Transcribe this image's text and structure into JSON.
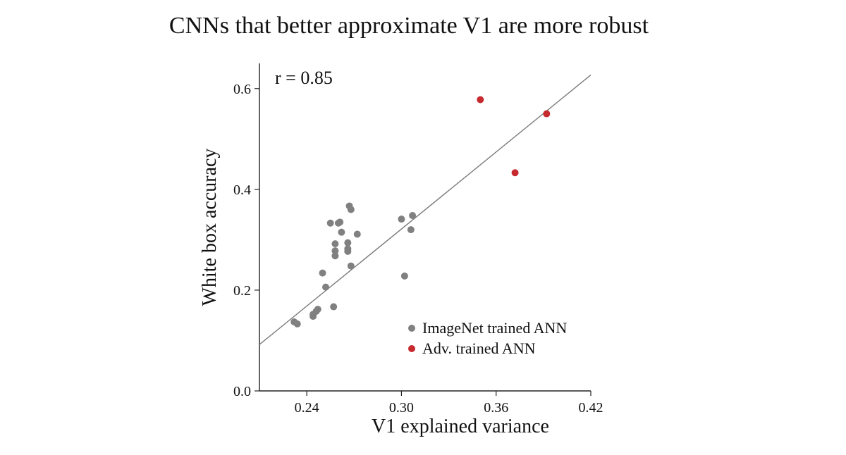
{
  "chart_data": {
    "type": "scatter",
    "title": "CNNs that better approximate V1 are more robust",
    "xlabel": "V1 explained variance",
    "ylabel": "White box accuracy",
    "xlim": [
      0.21,
      0.42
    ],
    "ylim": [
      0.0,
      0.65
    ],
    "xticks": [
      0.24,
      0.3,
      0.36,
      0.42
    ],
    "xtick_labels": [
      "0.24",
      "0.30",
      "0.36",
      "0.42"
    ],
    "yticks": [
      0.0,
      0.2,
      0.4,
      0.6
    ],
    "ytick_labels": [
      "0.0",
      "0.2",
      "0.4",
      "0.6"
    ],
    "annotation": "r = 0.85",
    "fit_line": {
      "x": [
        0.21,
        0.42
      ],
      "y": [
        0.092,
        0.627
      ]
    },
    "legend_position": "bottom-right",
    "series": [
      {
        "name": "ImageNet trained ANN",
        "color": "#808080",
        "points": [
          [
            0.232,
            0.137
          ],
          [
            0.234,
            0.133
          ],
          [
            0.244,
            0.148
          ],
          [
            0.244,
            0.152
          ],
          [
            0.246,
            0.158
          ],
          [
            0.247,
            0.162
          ],
          [
            0.25,
            0.234
          ],
          [
            0.252,
            0.206
          ],
          [
            0.257,
            0.167
          ],
          [
            0.255,
            0.333
          ],
          [
            0.258,
            0.292
          ],
          [
            0.258,
            0.278
          ],
          [
            0.258,
            0.268
          ],
          [
            0.26,
            0.333
          ],
          [
            0.261,
            0.335
          ],
          [
            0.262,
            0.315
          ],
          [
            0.266,
            0.294
          ],
          [
            0.266,
            0.282
          ],
          [
            0.266,
            0.277
          ],
          [
            0.267,
            0.367
          ],
          [
            0.268,
            0.36
          ],
          [
            0.268,
            0.248
          ],
          [
            0.272,
            0.311
          ],
          [
            0.3,
            0.341
          ],
          [
            0.302,
            0.228
          ],
          [
            0.306,
            0.32
          ],
          [
            0.307,
            0.348
          ]
        ]
      },
      {
        "name": "Adv. trained ANN",
        "color": "#c62a2f",
        "points": [
          [
            0.35,
            0.578
          ],
          [
            0.372,
            0.433
          ],
          [
            0.392,
            0.55
          ]
        ]
      }
    ]
  }
}
